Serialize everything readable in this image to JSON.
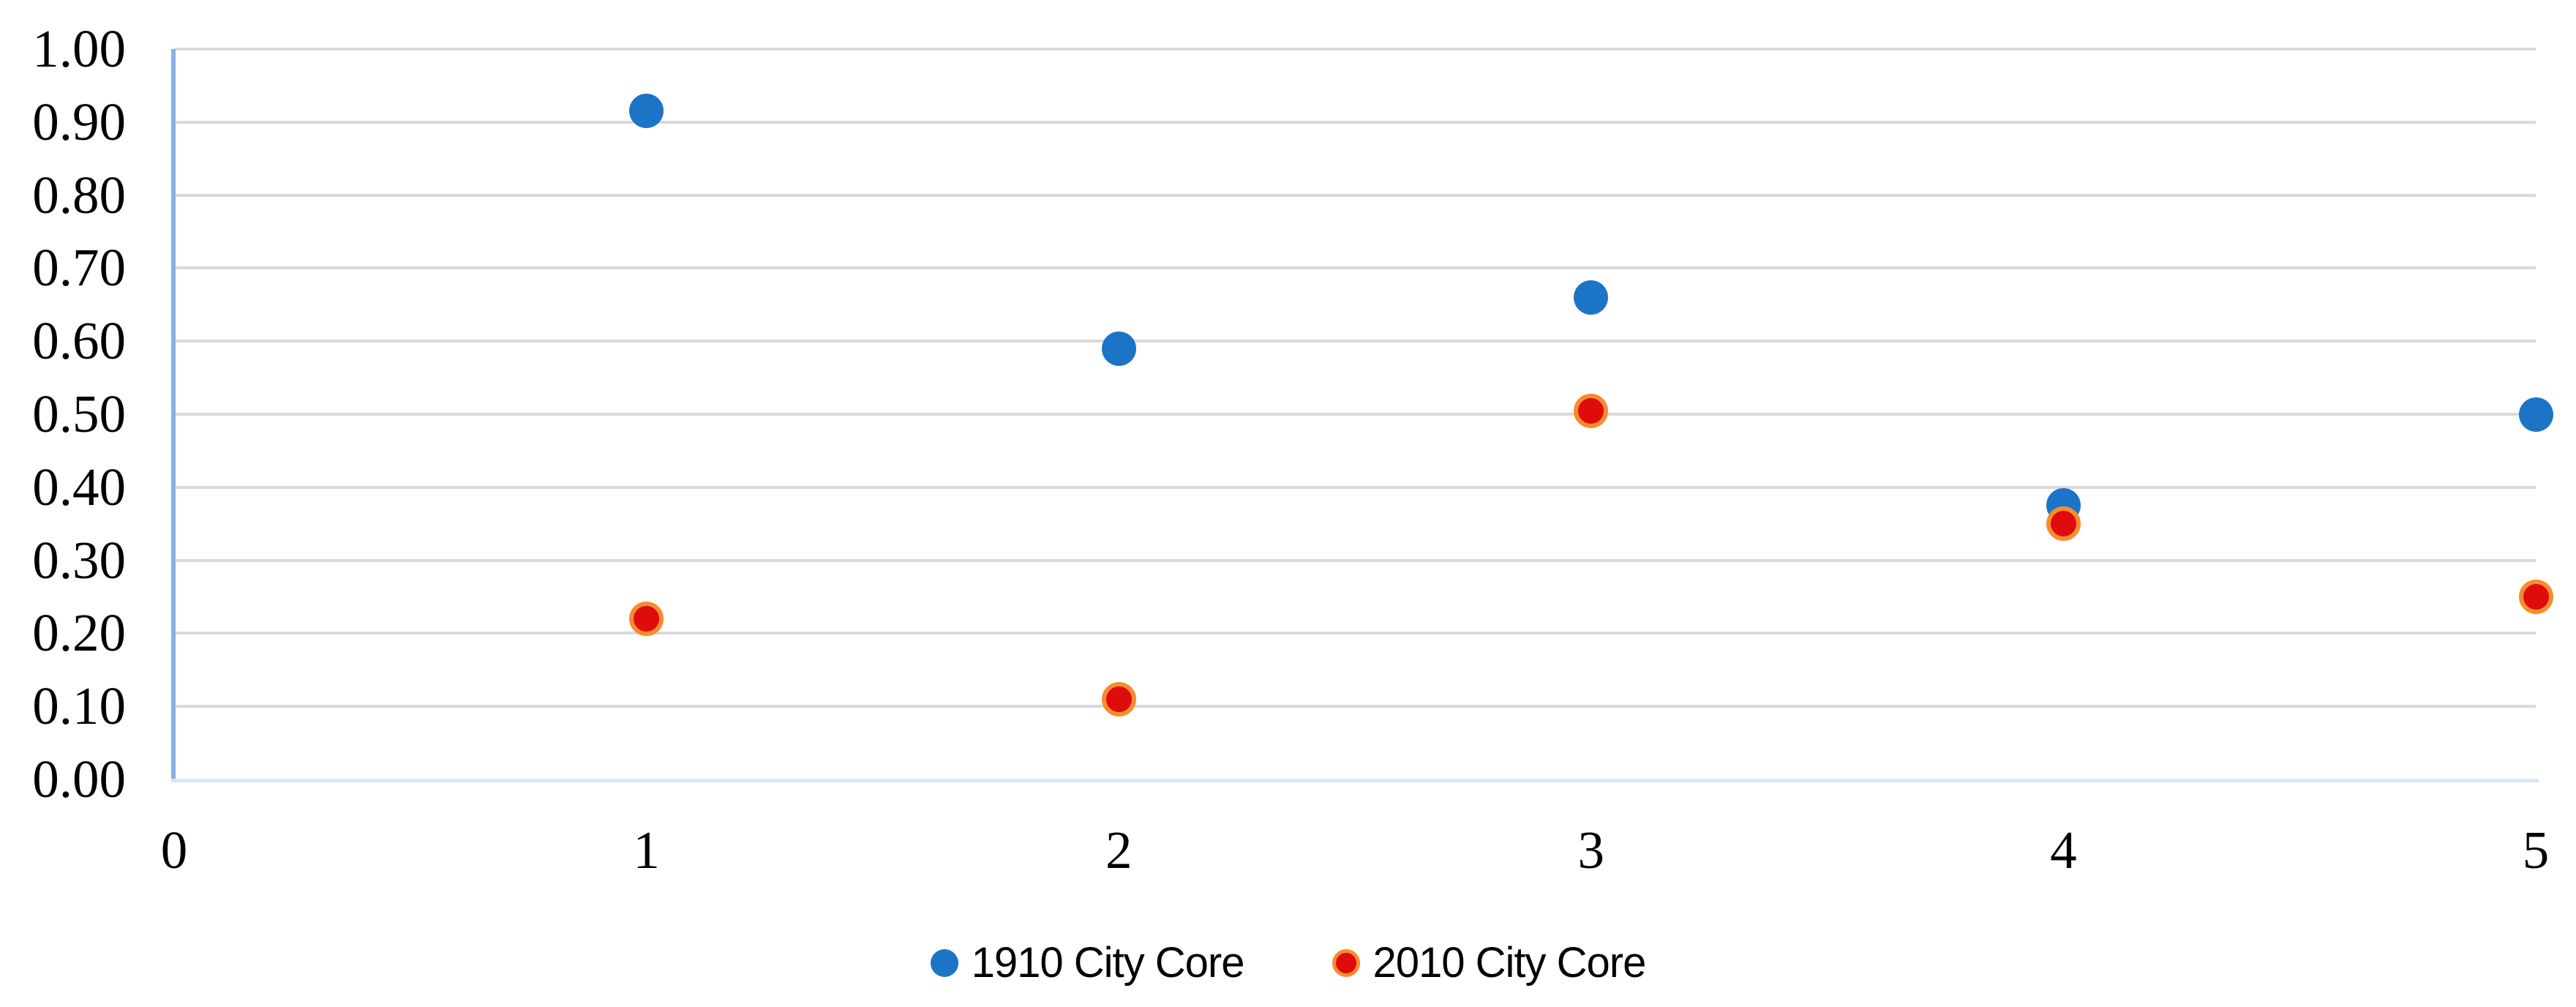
{
  "chart_data": {
    "type": "scatter",
    "title": "",
    "xlabel": "",
    "ylabel": "",
    "xlim": [
      0,
      5
    ],
    "ylim": [
      0.0,
      1.0
    ],
    "grid": true,
    "legend_position": "bottom-center",
    "x_ticks": [
      "0",
      "1",
      "2",
      "3",
      "4",
      "5"
    ],
    "y_ticks": [
      "1.00",
      "0.90",
      "0.80",
      "0.70",
      "0.60",
      "0.50",
      "0.40",
      "0.30",
      "0.20",
      "0.10",
      "0.00"
    ],
    "series": [
      {
        "name": "1910 City Core",
        "marker": "circle",
        "fill_color": "#1C74C6",
        "border_color": "#1C74C6",
        "points": [
          [
            1,
            0.915
          ],
          [
            2,
            0.59
          ],
          [
            3,
            0.66
          ],
          [
            4,
            0.375
          ],
          [
            5,
            0.5
          ]
        ]
      },
      {
        "name": "2010 City Core",
        "marker": "circle-ringed",
        "fill_color": "#DE0C0C",
        "border_color": "#F68C2F",
        "points": [
          [
            1,
            0.22
          ],
          [
            2,
            0.11
          ],
          [
            3,
            0.505
          ],
          [
            4,
            0.35
          ],
          [
            5,
            0.25
          ]
        ]
      }
    ]
  },
  "colors": {
    "gridline": "#D9D9D9",
    "y_axis_line": "#84B2E2",
    "x_axis_line": "#D9E5F3",
    "tick_text": "#000000",
    "background": "#FFFFFF"
  }
}
